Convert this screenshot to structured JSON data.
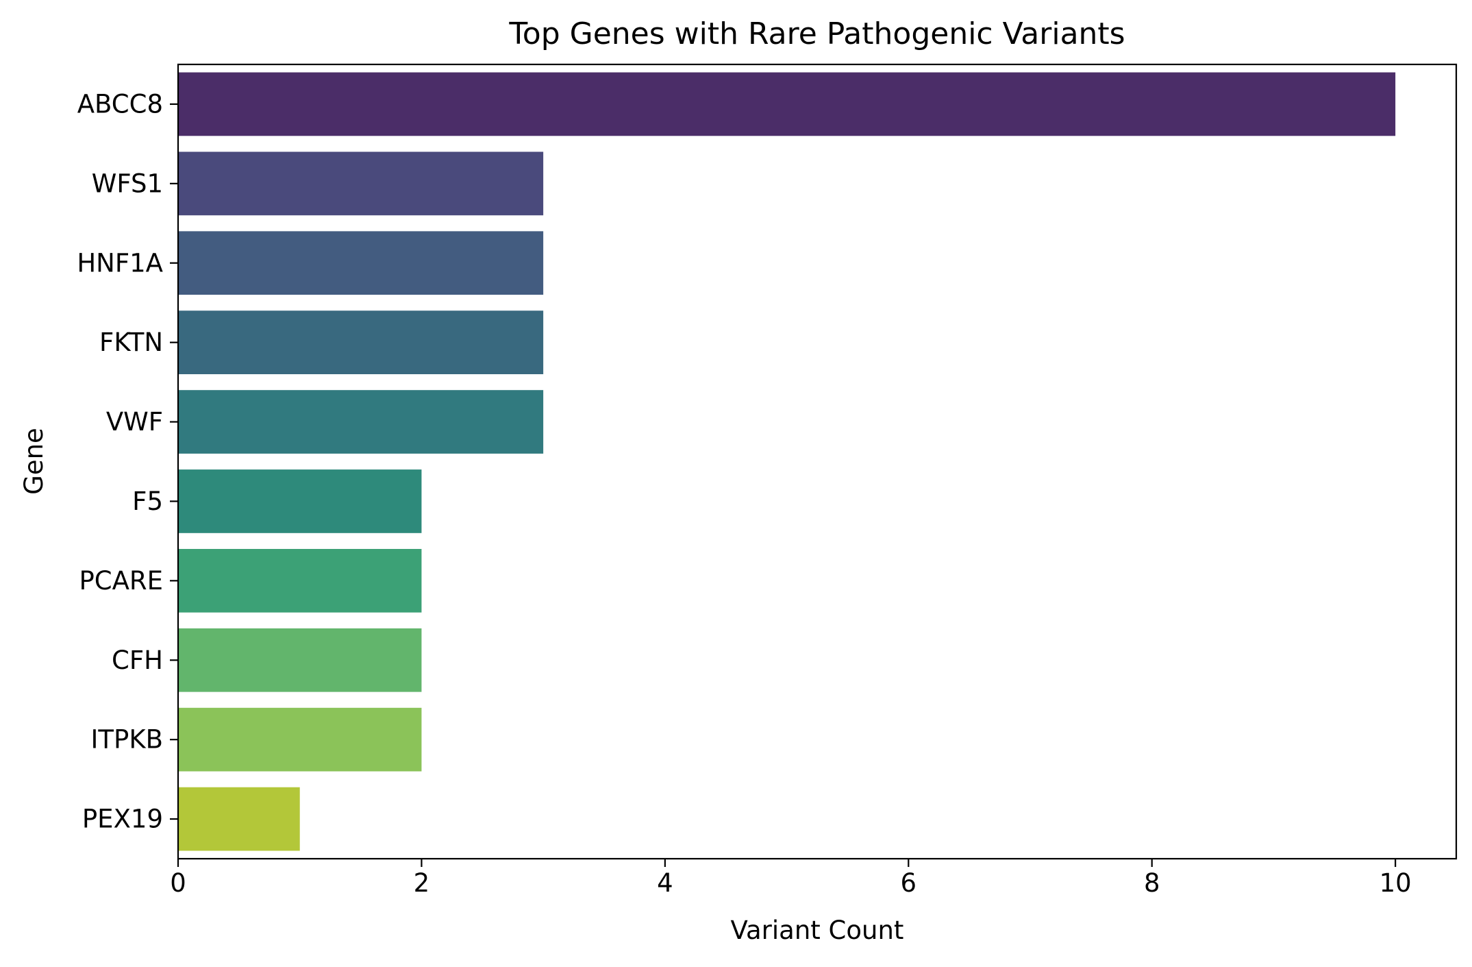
{
  "chart_data": {
    "type": "bar",
    "orientation": "horizontal",
    "title": "Top Genes with Rare Pathogenic Variants",
    "xlabel": "Variant Count",
    "ylabel": "Gene",
    "categories": [
      "ABCC8",
      "WFS1",
      "HNF1A",
      "FKTN",
      "VWF",
      "F5",
      "PCARE",
      "CFH",
      "ITPKB",
      "PEX19"
    ],
    "values": [
      10,
      3,
      3,
      3,
      3,
      2,
      2,
      2,
      2,
      1
    ],
    "colors": [
      "#4b2d68",
      "#4a4a7c",
      "#435c80",
      "#39697f",
      "#317a7f",
      "#2e8a7b",
      "#3ca176",
      "#62b56c",
      "#8bc359",
      "#b3c739"
    ],
    "xlim": [
      0,
      10.5
    ],
    "xticks": [
      "0",
      "2",
      "4",
      "6",
      "8",
      "10"
    ],
    "xtick_values": [
      0,
      2,
      4,
      6,
      8,
      10
    ],
    "grid": false,
    "legend": "none"
  }
}
